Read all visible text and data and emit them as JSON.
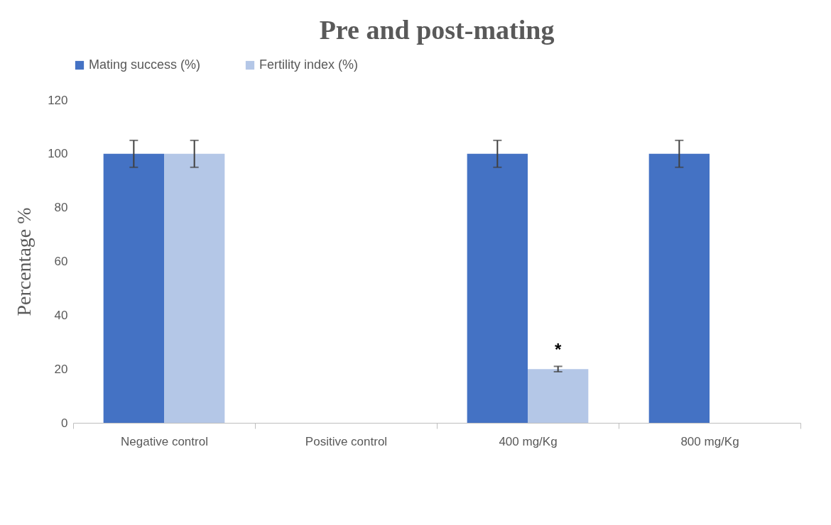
{
  "chart_data": {
    "type": "bar",
    "title": "Pre and post-mating",
    "ylabel": "Percentage %",
    "categories": [
      "Negative control",
      "Positive control",
      "400 mg/Kg",
      "800 mg/Kg"
    ],
    "series": [
      {
        "name": "Mating success (%)",
        "color": "#4472c4",
        "values": [
          100,
          0,
          100,
          100
        ],
        "errors": [
          5,
          null,
          5,
          5
        ]
      },
      {
        "name": "Fertility index (%)",
        "color": "#b4c7e7",
        "values": [
          100,
          0,
          20,
          0
        ],
        "errors": [
          5,
          null,
          1,
          null
        ]
      }
    ],
    "ylim": [
      0,
      120
    ],
    "yticks": [
      0,
      20,
      40,
      60,
      80,
      100,
      120
    ],
    "grid": false,
    "legend": "top",
    "annotations": [
      {
        "text": "*",
        "x": "400 mg/Kg",
        "y": 27
      }
    ]
  }
}
